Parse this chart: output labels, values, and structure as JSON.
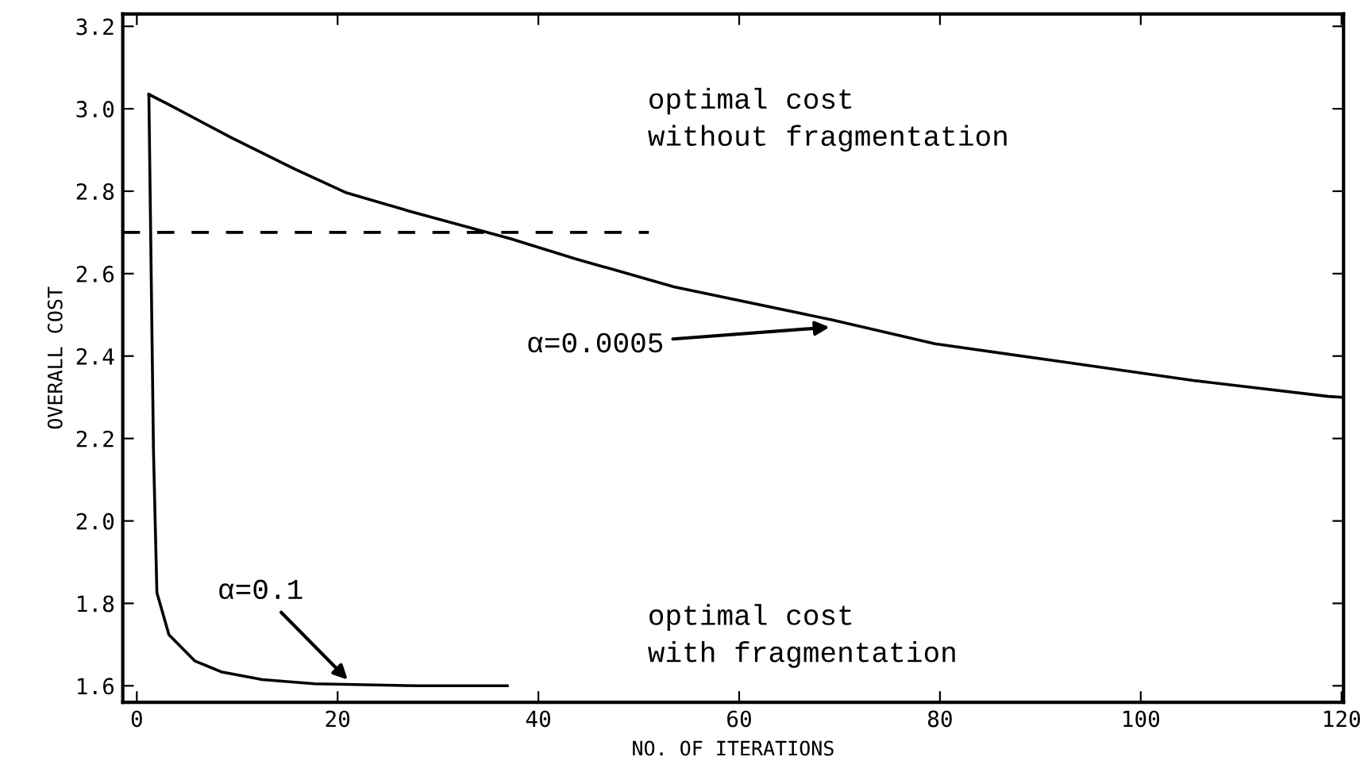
{
  "chart_data": {
    "type": "line",
    "xlabel": "NO. OF ITERATIONS",
    "ylabel": "OVERALL COST",
    "series": [
      {
        "color": "#000000",
        "x": [
          1.2,
          3.2,
          9.4,
          15.7,
          20.9,
          27.1,
          37.2,
          43.7,
          53.5,
          69.2,
          79.5,
          92.5,
          105.5,
          118.7,
          120
        ],
        "values": [
          3.035,
          3.01,
          2.93,
          2.854,
          2.796,
          2.752,
          2.685,
          2.636,
          2.568,
          2.488,
          2.43,
          2.385,
          2.34,
          2.302,
          2.3
        ]
      },
      {
        "color": "#000000",
        "x": [
          1.2,
          1.66,
          2.0,
          3.2,
          5.8,
          8.4,
          12.5,
          17.7,
          28,
          36.9
        ],
        "values": [
          3.035,
          2.17,
          1.826,
          1.724,
          1.66,
          1.634,
          1.615,
          1.605,
          1.6,
          1.6
        ]
      },
      {
        "color": "#000000",
        "line_style": "dashed",
        "x": [
          -1.4,
          51
        ],
        "values": [
          2.7,
          2.7
        ]
      }
    ],
    "annotations": [
      {
        "text": "α=0.0005",
        "x": 69,
        "y": 2.47
      },
      {
        "text": "α=0.1",
        "x": 21,
        "y": 1.615
      },
      "optimal cost\nwithout fragmentation",
      "optimal cost\nwith fragmentation"
    ],
    "xlim": [
      -1.4,
      120.2
    ],
    "ylim": [
      1.56,
      3.23
    ],
    "xticks": [
      0,
      20,
      40,
      60,
      80,
      100,
      120
    ],
    "yticks": [
      1.6,
      1.8,
      {
        "value": 2,
        "label": "2.0"
      },
      2.2,
      2.4,
      2.6,
      2.8,
      {
        "value": 3,
        "label": "3.0"
      },
      3.2
    ],
    "marker": "none",
    "line_style": "solid",
    "grid": false
  }
}
